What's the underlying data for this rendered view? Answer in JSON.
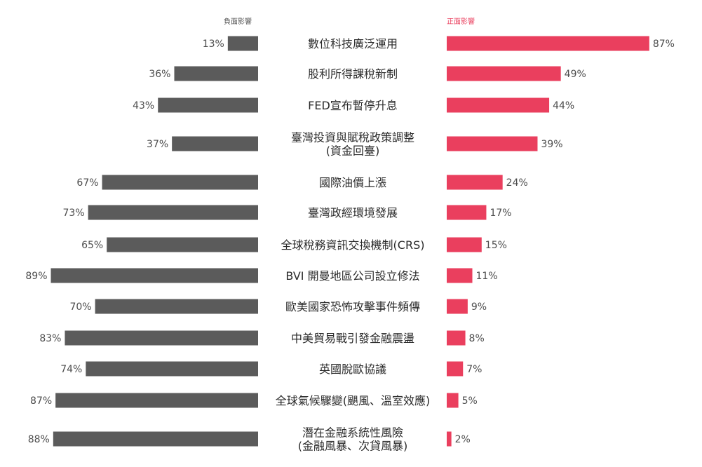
{
  "chart_data": {
    "type": "bar",
    "layout": "diverging-butterfly",
    "legend": {
      "negative": "負面影響",
      "positive": "正面影響"
    },
    "colors": {
      "negative": "#5b5b5b",
      "positive": "#ea3f5e",
      "label_text": "#4d4d4d",
      "category_text": "#2a2a2a",
      "legend_negative_text": "#555555",
      "legend_positive_text": "#ea3f5e"
    },
    "xlim": [
      0,
      100
    ],
    "categories": [
      [
        "數位科技廣泛運用"
      ],
      [
        "股利所得課稅新制"
      ],
      [
        "FED宣布暫停升息"
      ],
      [
        "臺灣投資與賦稅政策調整",
        "(資金回臺)"
      ],
      [
        "國際油價上漲"
      ],
      [
        "臺灣政經環境發展"
      ],
      [
        "全球稅務資訊交換機制(CRS)"
      ],
      [
        "BVI 開曼地區公司設立修法"
      ],
      [
        "歐美國家恐怖攻擊事件頻傳"
      ],
      [
        "中美貿易戰引發金融震盪"
      ],
      [
        "英國脫歐協議"
      ],
      [
        "全球氣候驟變(颶風、溫室效應)"
      ],
      [
        "潛在金融系統性風險",
        "(金融風暴、次貸風暴)"
      ]
    ],
    "series": [
      {
        "name": "負面影響",
        "side": "left",
        "values": [
          13,
          36,
          43,
          37,
          67,
          73,
          65,
          89,
          70,
          83,
          74,
          87,
          88
        ],
        "labels": [
          "13%",
          "36%",
          "43%",
          "37%",
          "67%",
          "73%",
          "65%",
          "89%",
          "70%",
          "83%",
          "74%",
          "87%",
          "88%"
        ]
      },
      {
        "name": "正面影響",
        "side": "right",
        "values": [
          87,
          49,
          44,
          39,
          24,
          17,
          15,
          11,
          9,
          8,
          7,
          5,
          2
        ],
        "labels": [
          "87%",
          "49%",
          "44%",
          "39%",
          "24%",
          "17%",
          "15%",
          "11%",
          "9%",
          "8%",
          "7%",
          "5%",
          "2%"
        ]
      }
    ]
  }
}
